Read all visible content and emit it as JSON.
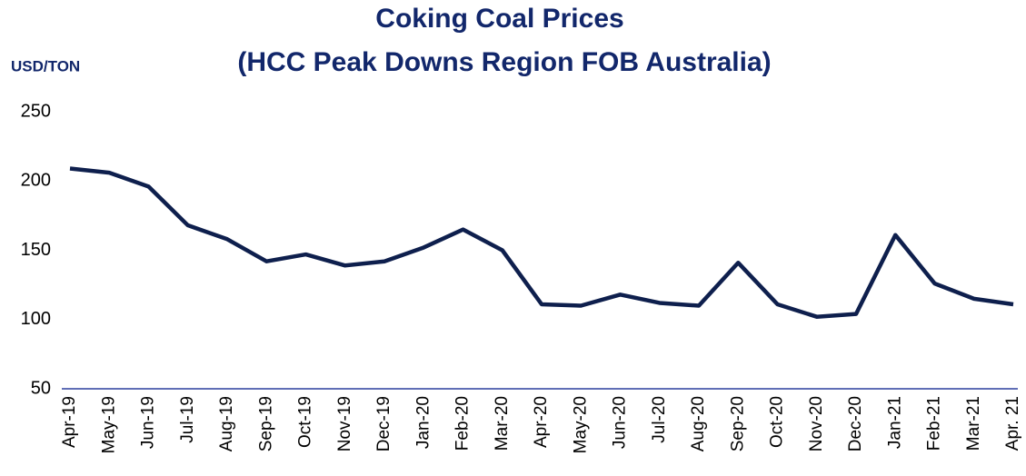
{
  "chart_data": {
    "type": "line",
    "title": "Coking Coal Prices",
    "subtitle": "(HCC Peak Downs Region FOB Australia)",
    "y_axis_label": "USD/TON",
    "categories": [
      "Apr-19",
      "May-19",
      "Jun-19",
      "Jul-19",
      "Aug-19",
      "Sep-19",
      "Oct-19",
      "Nov-19",
      "Dec-19",
      "Jan-20",
      "Feb-20",
      "Mar-20",
      "Apr-20",
      "May-20",
      "Jun-20",
      "Jul-20",
      "Aug-20",
      "Sep-20",
      "Oct-20",
      "Nov-20",
      "Dec-20",
      "Jan-21",
      "Feb-21",
      "Mar-21",
      "Apr. 21"
    ],
    "series": [
      {
        "name": "HCC Peak Downs Region FOB Australia",
        "color": "#0e1f4d",
        "values": [
          209,
          206,
          196,
          168,
          158,
          142,
          147,
          139,
          142,
          152,
          165,
          150,
          111,
          110,
          118,
          112,
          110,
          141,
          111,
          102,
          104,
          161,
          126,
          115,
          111
        ]
      }
    ],
    "ylim": [
      50,
      250
    ],
    "yticks": [
      50,
      100,
      150,
      200,
      250
    ],
    "grid": false,
    "axis_color": "#2b3f9e",
    "title_color": "#12276b"
  }
}
